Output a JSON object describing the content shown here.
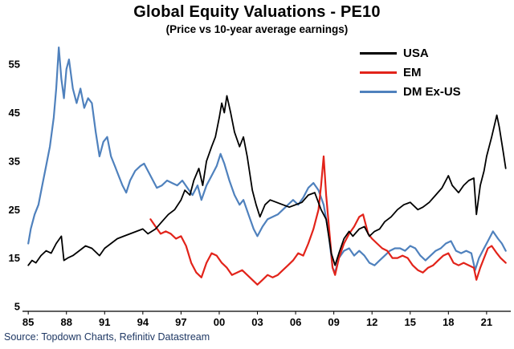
{
  "title": "Global Equity Valuations - PE10",
  "subtitle": "(Price vs 10-year average earnings)",
  "source": "Source: Topdown Charts, Refinitiv Datastream",
  "source_color": "#1f3864",
  "chart_data": {
    "type": "line",
    "title": "Global Equity Valuations - PE10",
    "subtitle": "(Price vs 10-year average earnings)",
    "xlabel": "",
    "ylabel": "",
    "grid": false,
    "legend_position": "top-right",
    "xlim": [
      1984.8,
      2022.9
    ],
    "ylim": [
      4,
      60
    ],
    "x_ticks": [
      "85",
      "88",
      "91",
      "94",
      "97",
      "00",
      "03",
      "06",
      "09",
      "12",
      "15",
      "18",
      "21"
    ],
    "x_tick_years": [
      1985,
      1988,
      1991,
      1994,
      1997,
      2000,
      2003,
      2006,
      2009,
      2012,
      2015,
      2018,
      2021
    ],
    "y_ticks": [
      5,
      15,
      25,
      35,
      45,
      55
    ],
    "series": [
      {
        "name": "USA",
        "color": "#000000",
        "width": 1.8,
        "points": [
          [
            1985.0,
            13.5
          ],
          [
            1985.3,
            14.5
          ],
          [
            1985.6,
            14
          ],
          [
            1986.0,
            15.5
          ],
          [
            1986.4,
            16.5
          ],
          [
            1986.8,
            16
          ],
          [
            1987.2,
            18
          ],
          [
            1987.6,
            19.5
          ],
          [
            1987.8,
            14.5
          ],
          [
            1988.1,
            15
          ],
          [
            1988.5,
            15.5
          ],
          [
            1989.0,
            16.5
          ],
          [
            1989.5,
            17.5
          ],
          [
            1990.0,
            17
          ],
          [
            1990.6,
            15.5
          ],
          [
            1991.0,
            17
          ],
          [
            1991.5,
            18
          ],
          [
            1992.0,
            19
          ],
          [
            1992.5,
            19.5
          ],
          [
            1993.0,
            20
          ],
          [
            1993.5,
            20.5
          ],
          [
            1994.0,
            21
          ],
          [
            1994.4,
            20
          ],
          [
            1995.0,
            21
          ],
          [
            1995.5,
            22.5
          ],
          [
            1996.0,
            24
          ],
          [
            1996.5,
            25
          ],
          [
            1997.0,
            27
          ],
          [
            1997.3,
            29
          ],
          [
            1997.7,
            28
          ],
          [
            1998.0,
            31
          ],
          [
            1998.4,
            33.5
          ],
          [
            1998.7,
            30
          ],
          [
            1999.0,
            35
          ],
          [
            1999.4,
            38
          ],
          [
            1999.7,
            40
          ],
          [
            2000.0,
            44
          ],
          [
            2000.2,
            47
          ],
          [
            2000.4,
            45
          ],
          [
            2000.6,
            48.5
          ],
          [
            2000.9,
            45
          ],
          [
            2001.2,
            41
          ],
          [
            2001.6,
            38
          ],
          [
            2001.9,
            40
          ],
          [
            2002.2,
            36
          ],
          [
            2002.6,
            29
          ],
          [
            2002.9,
            26
          ],
          [
            2003.2,
            23.5
          ],
          [
            2003.6,
            26
          ],
          [
            2004.0,
            27
          ],
          [
            2004.5,
            26.5
          ],
          [
            2005.0,
            26
          ],
          [
            2005.5,
            25.5
          ],
          [
            2006.0,
            26
          ],
          [
            2006.5,
            26.5
          ],
          [
            2007.0,
            28
          ],
          [
            2007.5,
            28.5
          ],
          [
            2008.0,
            25
          ],
          [
            2008.4,
            23
          ],
          [
            2008.8,
            16
          ],
          [
            2009.1,
            13.5
          ],
          [
            2009.4,
            16
          ],
          [
            2009.8,
            19
          ],
          [
            2010.2,
            20.5
          ],
          [
            2010.5,
            19.5
          ],
          [
            2011.0,
            21
          ],
          [
            2011.4,
            21.5
          ],
          [
            2011.8,
            19.5
          ],
          [
            2012.2,
            20.5
          ],
          [
            2012.6,
            21
          ],
          [
            2013.0,
            22.5
          ],
          [
            2013.5,
            23.5
          ],
          [
            2014.0,
            25
          ],
          [
            2014.5,
            26
          ],
          [
            2015.0,
            26.5
          ],
          [
            2015.6,
            25
          ],
          [
            2016.0,
            25.5
          ],
          [
            2016.5,
            26.5
          ],
          [
            2017.0,
            28
          ],
          [
            2017.5,
            29.5
          ],
          [
            2018.0,
            32
          ],
          [
            2018.3,
            30
          ],
          [
            2018.8,
            28.5
          ],
          [
            2019.2,
            30
          ],
          [
            2019.6,
            31
          ],
          [
            2020.0,
            31.5
          ],
          [
            2020.2,
            24
          ],
          [
            2020.5,
            30
          ],
          [
            2020.8,
            33
          ],
          [
            2021.0,
            36
          ],
          [
            2021.4,
            40
          ],
          [
            2021.8,
            44.5
          ],
          [
            2022.0,
            42
          ],
          [
            2022.3,
            37
          ],
          [
            2022.5,
            33.5
          ]
        ]
      },
      {
        "name": "EM",
        "color": "#e2231a",
        "width": 2.2,
        "points": [
          [
            1994.6,
            23
          ],
          [
            1995.0,
            21.5
          ],
          [
            1995.4,
            20
          ],
          [
            1995.8,
            20.5
          ],
          [
            1996.2,
            20
          ],
          [
            1996.6,
            19
          ],
          [
            1997.0,
            19.5
          ],
          [
            1997.4,
            17.5
          ],
          [
            1997.8,
            14
          ],
          [
            1998.2,
            12
          ],
          [
            1998.6,
            11
          ],
          [
            1999.0,
            14
          ],
          [
            1999.4,
            16
          ],
          [
            1999.8,
            15.5
          ],
          [
            2000.2,
            14
          ],
          [
            2000.6,
            13
          ],
          [
            2001.0,
            11.5
          ],
          [
            2001.4,
            12
          ],
          [
            2001.8,
            12.5
          ],
          [
            2002.2,
            11.5
          ],
          [
            2002.6,
            10.5
          ],
          [
            2003.0,
            9.5
          ],
          [
            2003.4,
            10.5
          ],
          [
            2003.8,
            11.5
          ],
          [
            2004.2,
            11
          ],
          [
            2004.6,
            11.5
          ],
          [
            2005.0,
            12.5
          ],
          [
            2005.4,
            13.5
          ],
          [
            2005.8,
            14.5
          ],
          [
            2006.2,
            16
          ],
          [
            2006.6,
            15.5
          ],
          [
            2007.0,
            18
          ],
          [
            2007.4,
            21
          ],
          [
            2007.8,
            25
          ],
          [
            2008.0,
            30
          ],
          [
            2008.2,
            36
          ],
          [
            2008.4,
            28
          ],
          [
            2008.6,
            22
          ],
          [
            2008.9,
            13
          ],
          [
            2009.1,
            11.5
          ],
          [
            2009.4,
            15
          ],
          [
            2009.8,
            18
          ],
          [
            2010.2,
            20
          ],
          [
            2010.6,
            21.5
          ],
          [
            2011.0,
            23.5
          ],
          [
            2011.3,
            24
          ],
          [
            2011.7,
            20
          ],
          [
            2012.0,
            19
          ],
          [
            2012.4,
            18
          ],
          [
            2012.8,
            17
          ],
          [
            2013.2,
            16.5
          ],
          [
            2013.6,
            15
          ],
          [
            2014.0,
            15
          ],
          [
            2014.4,
            15.5
          ],
          [
            2014.8,
            15
          ],
          [
            2015.2,
            13.5
          ],
          [
            2015.6,
            12.5
          ],
          [
            2016.0,
            12
          ],
          [
            2016.4,
            13
          ],
          [
            2016.8,
            13.5
          ],
          [
            2017.2,
            14.5
          ],
          [
            2017.6,
            15.5
          ],
          [
            2018.0,
            16
          ],
          [
            2018.4,
            14
          ],
          [
            2018.8,
            13.5
          ],
          [
            2019.2,
            14
          ],
          [
            2019.6,
            13.5
          ],
          [
            2020.0,
            13
          ],
          [
            2020.2,
            10.5
          ],
          [
            2020.5,
            13
          ],
          [
            2020.8,
            15
          ],
          [
            2021.1,
            17
          ],
          [
            2021.4,
            17.5
          ],
          [
            2021.8,
            16
          ],
          [
            2022.1,
            15
          ],
          [
            2022.5,
            14
          ]
        ]
      },
      {
        "name": "DM Ex-US",
        "color": "#4f81bd",
        "width": 2.2,
        "points": [
          [
            1985.0,
            18
          ],
          [
            1985.2,
            21
          ],
          [
            1985.5,
            24
          ],
          [
            1985.8,
            26
          ],
          [
            1986.1,
            30
          ],
          [
            1986.4,
            34
          ],
          [
            1986.7,
            38
          ],
          [
            1987.0,
            44
          ],
          [
            1987.2,
            50
          ],
          [
            1987.4,
            58.5
          ],
          [
            1987.6,
            52
          ],
          [
            1987.8,
            48
          ],
          [
            1988.0,
            54
          ],
          [
            1988.2,
            56
          ],
          [
            1988.5,
            50
          ],
          [
            1988.8,
            47
          ],
          [
            1989.1,
            50
          ],
          [
            1989.4,
            46
          ],
          [
            1989.7,
            48
          ],
          [
            1990.0,
            47
          ],
          [
            1990.3,
            41
          ],
          [
            1990.6,
            36
          ],
          [
            1990.9,
            39
          ],
          [
            1991.2,
            40
          ],
          [
            1991.5,
            36
          ],
          [
            1991.8,
            34
          ],
          [
            1992.1,
            32
          ],
          [
            1992.4,
            30
          ],
          [
            1992.7,
            28.5
          ],
          [
            1993.0,
            31
          ],
          [
            1993.4,
            33
          ],
          [
            1993.8,
            34
          ],
          [
            1994.1,
            34.5
          ],
          [
            1994.4,
            33
          ],
          [
            1994.8,
            31
          ],
          [
            1995.1,
            29.5
          ],
          [
            1995.5,
            30
          ],
          [
            1995.9,
            31
          ],
          [
            1996.3,
            30.5
          ],
          [
            1996.7,
            30
          ],
          [
            1997.1,
            31
          ],
          [
            1997.5,
            29.5
          ],
          [
            1997.9,
            28
          ],
          [
            1998.3,
            30
          ],
          [
            1998.6,
            27
          ],
          [
            1999.0,
            30
          ],
          [
            1999.4,
            32
          ],
          [
            1999.8,
            34
          ],
          [
            2000.1,
            36.5
          ],
          [
            2000.4,
            34.5
          ],
          [
            2000.8,
            31
          ],
          [
            2001.2,
            28
          ],
          [
            2001.6,
            26
          ],
          [
            2001.9,
            27
          ],
          [
            2002.3,
            24
          ],
          [
            2002.7,
            21
          ],
          [
            2003.0,
            19.5
          ],
          [
            2003.4,
            21.5
          ],
          [
            2003.8,
            23
          ],
          [
            2004.2,
            23.5
          ],
          [
            2004.6,
            24
          ],
          [
            2005.0,
            25
          ],
          [
            2005.4,
            26
          ],
          [
            2005.8,
            27
          ],
          [
            2006.2,
            26
          ],
          [
            2006.6,
            27.5
          ],
          [
            2007.0,
            29.5
          ],
          [
            2007.4,
            30.5
          ],
          [
            2007.8,
            29
          ],
          [
            2008.2,
            26
          ],
          [
            2008.6,
            20
          ],
          [
            2008.9,
            13
          ],
          [
            2009.1,
            12
          ],
          [
            2009.4,
            15
          ],
          [
            2009.8,
            16.5
          ],
          [
            2010.2,
            17
          ],
          [
            2010.6,
            15.5
          ],
          [
            2011.0,
            16.5
          ],
          [
            2011.4,
            15.5
          ],
          [
            2011.8,
            14
          ],
          [
            2012.2,
            13.5
          ],
          [
            2012.6,
            14.5
          ],
          [
            2013.0,
            15.5
          ],
          [
            2013.4,
            16.5
          ],
          [
            2013.8,
            17
          ],
          [
            2014.2,
            17
          ],
          [
            2014.6,
            16.5
          ],
          [
            2015.0,
            17.5
          ],
          [
            2015.4,
            17
          ],
          [
            2015.8,
            15.5
          ],
          [
            2016.2,
            14.5
          ],
          [
            2016.6,
            15.5
          ],
          [
            2017.0,
            16.5
          ],
          [
            2017.4,
            17
          ],
          [
            2017.8,
            18
          ],
          [
            2018.2,
            18.5
          ],
          [
            2018.6,
            16.5
          ],
          [
            2019.0,
            16
          ],
          [
            2019.4,
            16.5
          ],
          [
            2019.8,
            16
          ],
          [
            2020.1,
            12.5
          ],
          [
            2020.4,
            15
          ],
          [
            2020.8,
            17
          ],
          [
            2021.1,
            18.5
          ],
          [
            2021.5,
            20.5
          ],
          [
            2021.9,
            19
          ],
          [
            2022.2,
            18
          ],
          [
            2022.5,
            16.5
          ]
        ]
      }
    ]
  }
}
